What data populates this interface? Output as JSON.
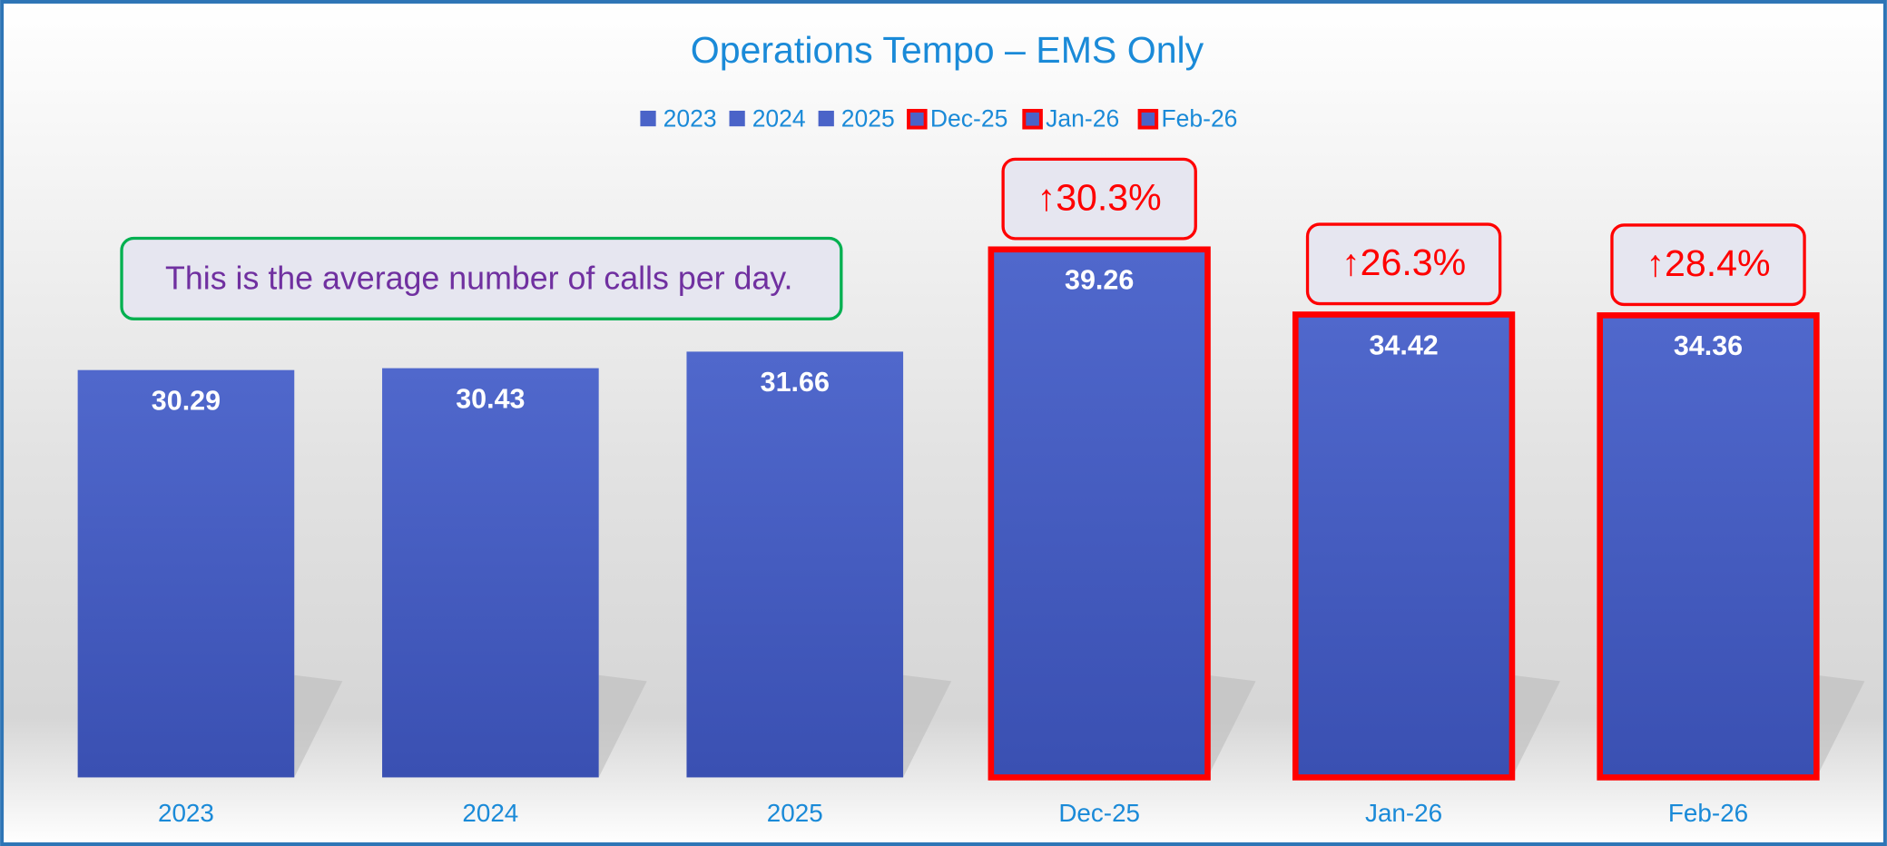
{
  "chart_data": {
    "type": "bar",
    "title": "Operations Tempo – EMS Only",
    "note": "This is the average number of calls per day.",
    "categories": [
      "2023",
      "2024",
      "2025",
      "Dec-25",
      "Jan-26",
      "Feb-26"
    ],
    "values": [
      30.29,
      30.43,
      31.66,
      39.26,
      34.42,
      34.36
    ],
    "highlighted": [
      false,
      false,
      false,
      true,
      true,
      true
    ],
    "annotations": [
      null,
      null,
      null,
      "↑30.3%",
      "↑26.3%",
      "↑28.4%"
    ],
    "color": "#4a63c8",
    "highlight_color": "#ff0000",
    "ylim": [
      0,
      40
    ],
    "legend": "top"
  }
}
